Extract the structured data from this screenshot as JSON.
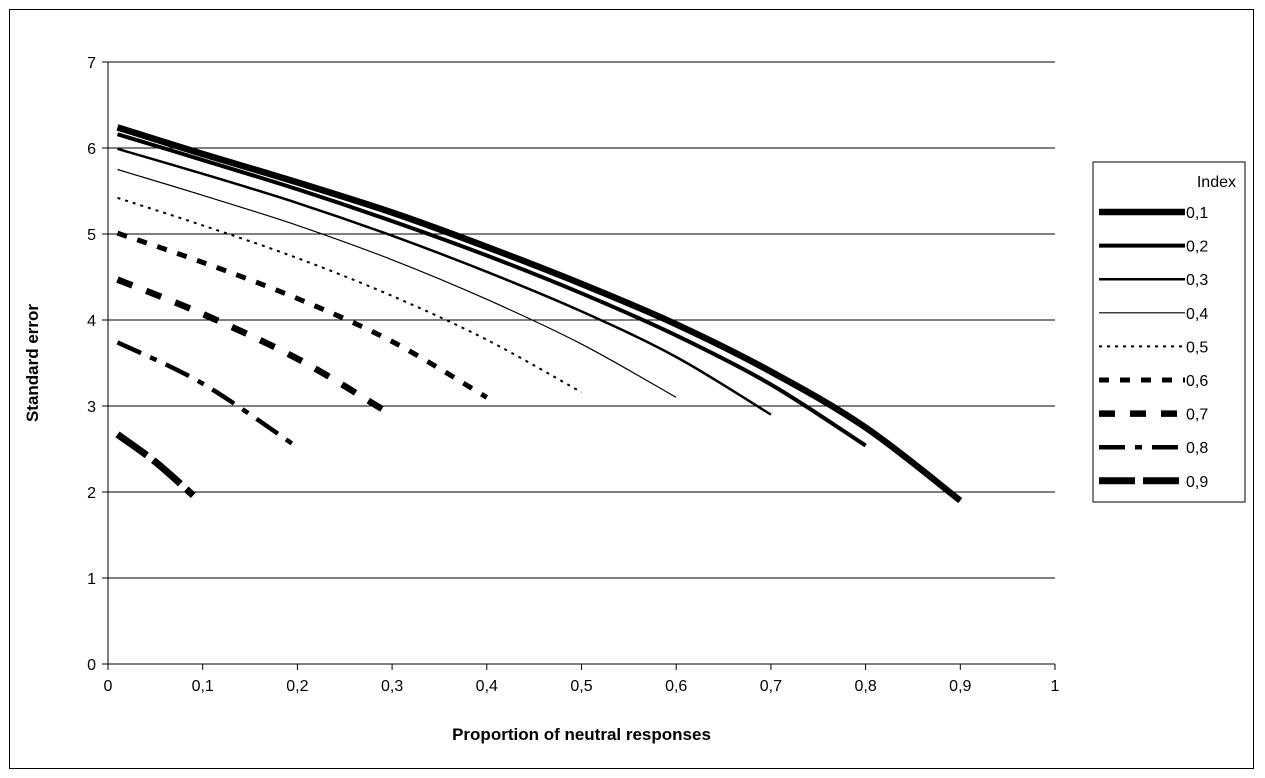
{
  "chart_data": {
    "type": "line",
    "title": "",
    "xlabel": "Proportion of neutral responses",
    "ylabel": "Standard error",
    "xlim": [
      0,
      1
    ],
    "ylim": [
      0,
      7
    ],
    "x_ticks": [
      "0",
      "0,1",
      "0,2",
      "0,3",
      "0,4",
      "0,5",
      "0,6",
      "0,7",
      "0,8",
      "0,9",
      "1"
    ],
    "y_ticks": [
      "0",
      "1",
      "2",
      "3",
      "4",
      "5",
      "6",
      "7"
    ],
    "grid": "horizontal",
    "legend": {
      "title": "Index",
      "placement": "right"
    },
    "series": [
      {
        "name": "0,1",
        "x": [
          0.01,
          0.1,
          0.2,
          0.3,
          0.4,
          0.5,
          0.6,
          0.7,
          0.8,
          0.9
        ],
        "values": [
          6.24,
          5.93,
          5.6,
          5.25,
          4.85,
          4.42,
          3.95,
          3.4,
          2.75,
          1.9
        ]
      },
      {
        "name": "0,2",
        "x": [
          0.01,
          0.1,
          0.2,
          0.3,
          0.4,
          0.5,
          0.6,
          0.7,
          0.8
        ],
        "values": [
          6.16,
          5.86,
          5.52,
          5.15,
          4.75,
          4.31,
          3.82,
          3.25,
          2.54
        ]
      },
      {
        "name": "0,3",
        "x": [
          0.01,
          0.1,
          0.2,
          0.3,
          0.4,
          0.5,
          0.6,
          0.7
        ],
        "values": [
          5.99,
          5.7,
          5.36,
          4.98,
          4.56,
          4.1,
          3.57,
          2.9
        ]
      },
      {
        "name": "0,4",
        "x": [
          0.01,
          0.1,
          0.2,
          0.3,
          0.4,
          0.5,
          0.6
        ],
        "values": [
          5.75,
          5.45,
          5.1,
          4.7,
          4.24,
          3.72,
          3.1
        ]
      },
      {
        "name": "0,5",
        "x": [
          0.01,
          0.1,
          0.2,
          0.3,
          0.4,
          0.5
        ],
        "values": [
          5.42,
          5.1,
          4.72,
          4.28,
          3.77,
          3.16
        ]
      },
      {
        "name": "0,6",
        "x": [
          0.01,
          0.1,
          0.2,
          0.3,
          0.4
        ],
        "values": [
          5.01,
          4.67,
          4.25,
          3.75,
          3.1
        ]
      },
      {
        "name": "0,7",
        "x": [
          0.01,
          0.1,
          0.2,
          0.29
        ],
        "values": [
          4.47,
          4.07,
          3.55,
          2.96
        ]
      },
      {
        "name": "0,8",
        "x": [
          0.01,
          0.1,
          0.2
        ],
        "values": [
          3.74,
          3.26,
          2.52
        ]
      },
      {
        "name": "0,9",
        "x": [
          0.01,
          0.05,
          0.09
        ],
        "values": [
          2.67,
          2.35,
          1.96
        ]
      }
    ]
  },
  "style": {
    "line_color": "#000000",
    "grid_color": "#000000"
  }
}
